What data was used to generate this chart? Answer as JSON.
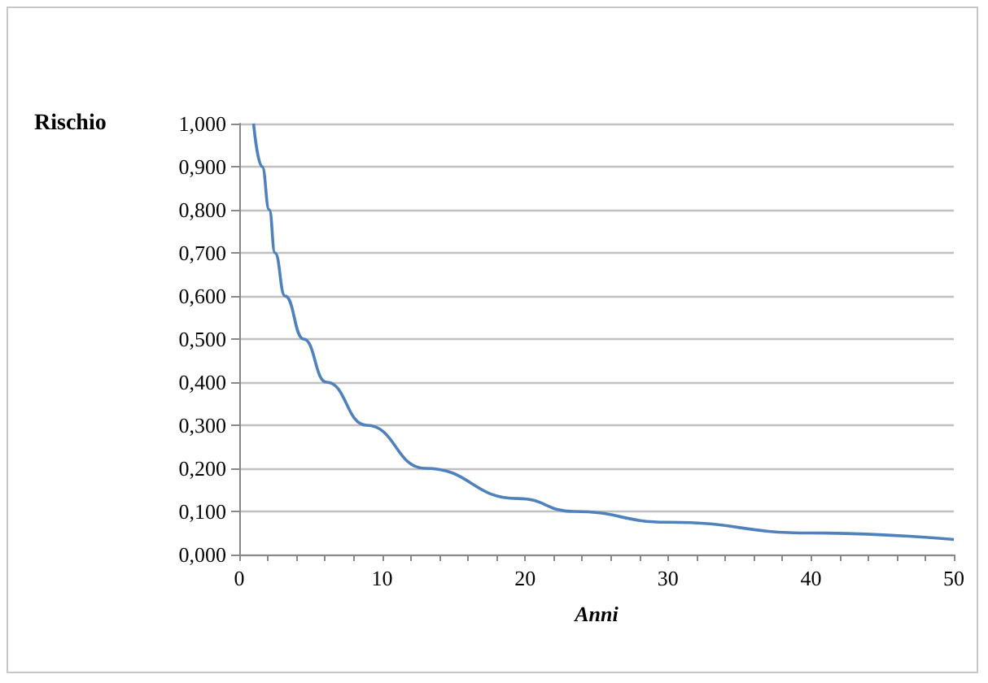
{
  "chart_data": {
    "type": "line",
    "ylabel": "Rischio",
    "xlabel": "Anni",
    "x": [
      1,
      1.6,
      2.1,
      2.5,
      3.2,
      4.5,
      6.1,
      8.9,
      13,
      19.5,
      23.4,
      30,
      40,
      50
    ],
    "series": [
      {
        "color": "#4f81bd",
        "values": [
          1,
          0.9,
          0.8,
          0.7,
          0.6,
          0.5,
          0.4,
          0.3,
          0.2,
          0.13,
          0.1,
          0.075,
          0.05,
          0.035
        ]
      }
    ],
    "xlim": [
      0,
      50
    ],
    "xticks": [
      0,
      10,
      20,
      30,
      40,
      50
    ],
    "ylim": [
      0,
      1
    ],
    "yticks": [
      {
        "value": 0,
        "label": "0,000"
      },
      {
        "value": 0.1,
        "label": "0,100"
      },
      {
        "value": 0.2,
        "label": "0,200"
      },
      {
        "value": 0.3,
        "label": "0,300"
      },
      {
        "value": 0.4,
        "label": "0,400"
      },
      {
        "value": 0.5,
        "label": "0,500"
      },
      {
        "value": 0.6,
        "label": "0,600"
      },
      {
        "value": 0.7,
        "label": "0,700"
      },
      {
        "value": 0.8,
        "label": "0,800"
      },
      {
        "value": 0.9,
        "label": "0,900"
      },
      {
        "value": 1,
        "label": "1,000"
      }
    ],
    "grid": "y",
    "marker": "none",
    "line_style": "solid"
  }
}
